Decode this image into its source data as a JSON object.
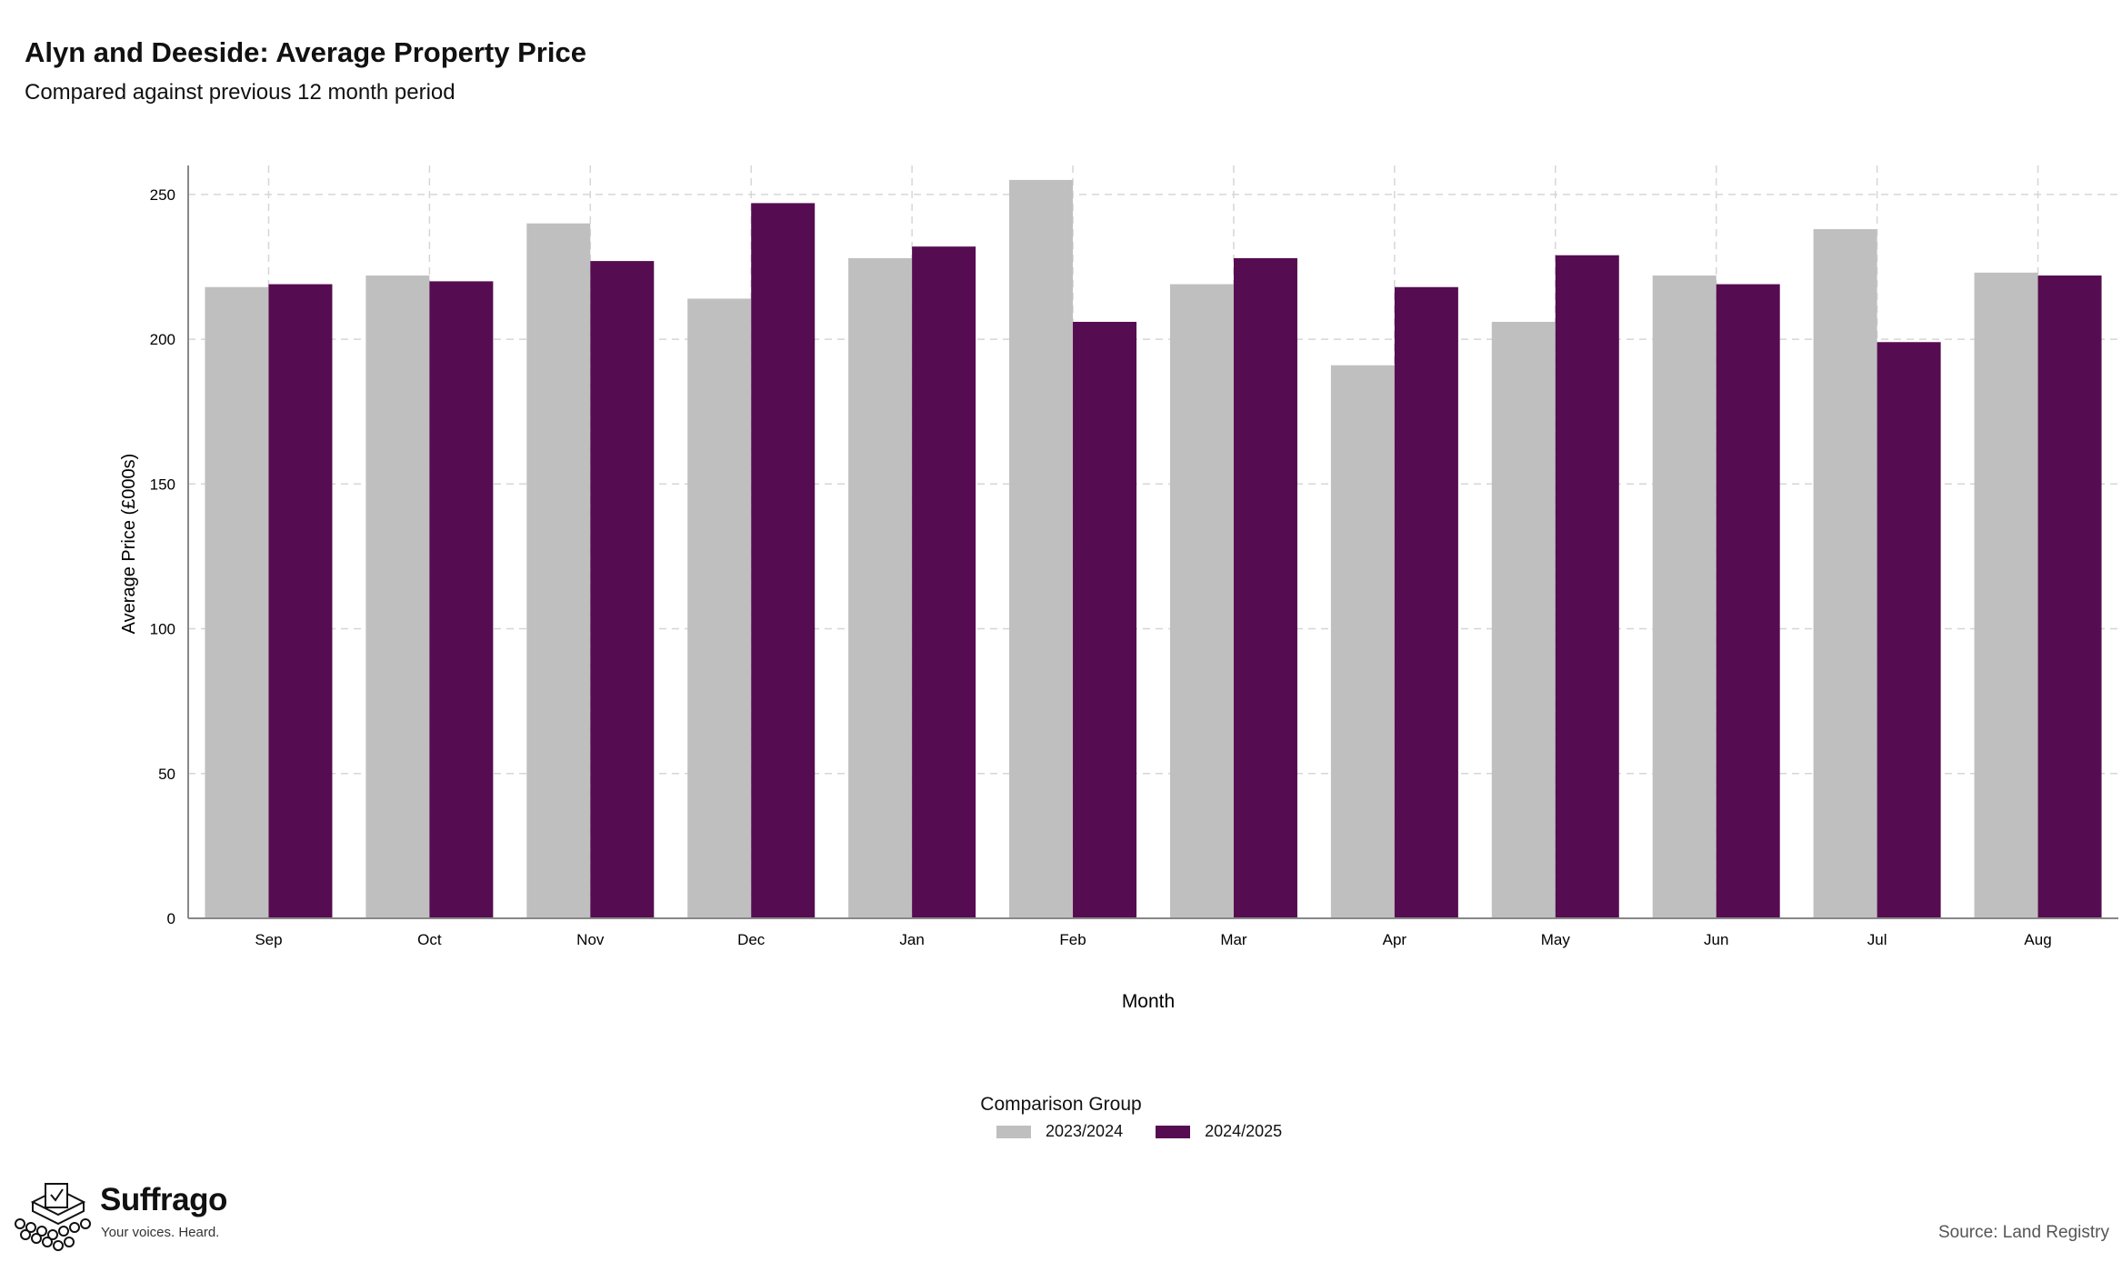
{
  "header": {
    "title": "Alyn and Deeside: Average Property Price",
    "subtitle": "Compared against previous 12 month period"
  },
  "chart_data": {
    "type": "bar",
    "categories": [
      "Sep",
      "Oct",
      "Nov",
      "Dec",
      "Jan",
      "Feb",
      "Mar",
      "Apr",
      "May",
      "Jun",
      "Jul",
      "Aug"
    ],
    "series": [
      {
        "name": "2023/2024",
        "color": "#bfbfbf",
        "values": [
          218,
          222,
          240,
          214,
          228,
          255,
          219,
          191,
          206,
          222,
          238,
          223
        ]
      },
      {
        "name": "2024/2025",
        "color": "#560c51",
        "values": [
          219,
          220,
          227,
          247,
          232,
          206,
          228,
          218,
          229,
          219,
          199,
          222
        ]
      }
    ],
    "xlabel": "Month",
    "ylabel": "Average Price (£000s)",
    "ylim": [
      0,
      260
    ],
    "yticks": [
      0,
      50,
      100,
      150,
      200,
      250
    ],
    "grid": true,
    "legend_title": "Comparison Group",
    "legend_position": "bottom"
  },
  "footer": {
    "brand": "Suffrago",
    "tagline": "Your voices. Heard.",
    "source": "Source: Land Registry"
  }
}
